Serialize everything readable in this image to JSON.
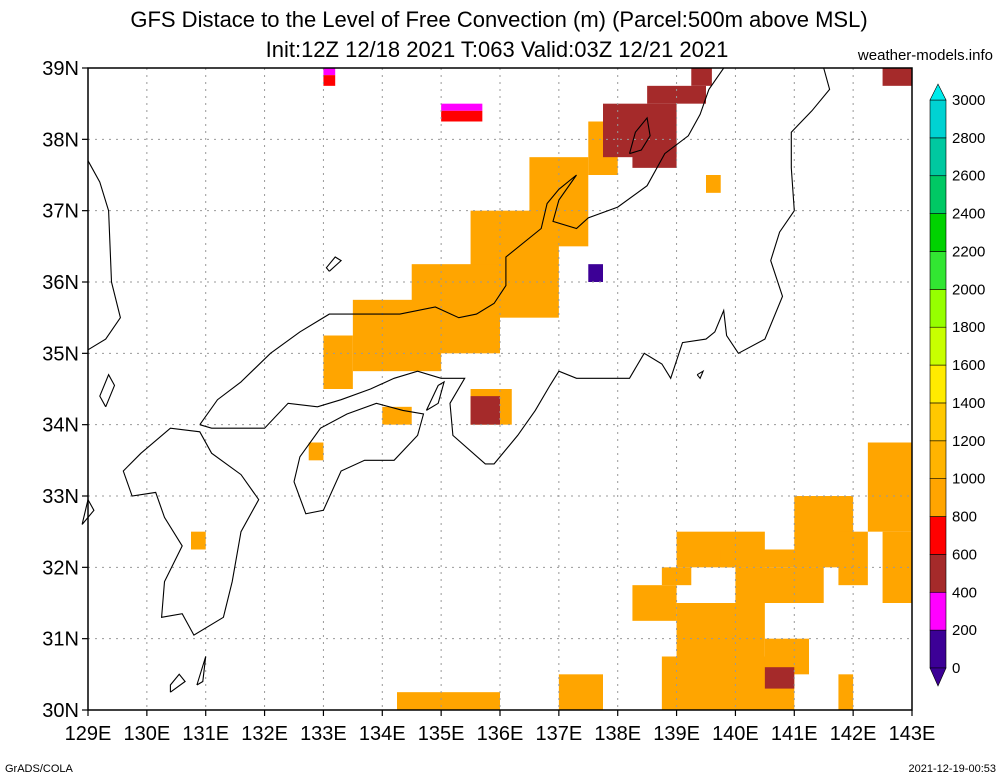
{
  "header": {
    "title_line1": "GFS Distace to the Level of Free Convection (m) (Parcel:500m above MSL)",
    "title_line2": "Init:12Z 12/18 2021 T:063 Valid:03Z 12/21 2021",
    "site": "weather-models.info"
  },
  "footer": {
    "left": "GrADS/COLA",
    "right": "2021-12-19-00:53"
  },
  "colors": {
    "coast": "#000000",
    "grid": "#999999"
  },
  "chart_data": {
    "type": "heatmap",
    "title": "GFS Distace to the Level of Free Convection (m) (Parcel:500m above MSL)",
    "subtitle": "Init:12Z 12/18 2021 T:063 Valid:03Z 12/21 2021",
    "units": "m",
    "x_range": [
      129,
      143
    ],
    "y_range": [
      30,
      39
    ],
    "x_ticks": [
      "129E",
      "130E",
      "131E",
      "132E",
      "133E",
      "134E",
      "135E",
      "136E",
      "137E",
      "138E",
      "139E",
      "140E",
      "141E",
      "142E",
      "143E"
    ],
    "y_ticks": [
      "30N",
      "31N",
      "32N",
      "33N",
      "34N",
      "35N",
      "36N",
      "37N",
      "38N",
      "39N"
    ],
    "grid": true,
    "colorbar": {
      "levels": [
        "0",
        "200",
        "400",
        "600",
        "800",
        "1000",
        "1200",
        "1400",
        "1600",
        "1800",
        "2000",
        "2200",
        "2400",
        "2600",
        "2800",
        "3000"
      ],
      "colors": [
        "#3c0096",
        "#ff00ff",
        "#a52a2a",
        "#ff0000",
        "#ffa500",
        "#ffb400",
        "#ffc800",
        "#ffeb00",
        "#c8ff00",
        "#96ff00",
        "#32e632",
        "#00d200",
        "#00c864",
        "#00c8a0",
        "#00d2d2",
        "#00ebeb"
      ],
      "placement": "right"
    },
    "cells": [
      {
        "lon": 133.0,
        "lat": 38.9,
        "lon2": 133.2,
        "lat2": 39.0,
        "value": 200
      },
      {
        "lon": 133.0,
        "lat": 38.75,
        "lon2": 133.2,
        "lat2": 38.9,
        "value": 700
      },
      {
        "lon": 135.0,
        "lat": 38.5,
        "lon2": 135.7,
        "lat2": 38.4,
        "value": 300
      },
      {
        "lon": 135.0,
        "lat": 38.4,
        "lon2": 135.7,
        "lat2": 38.25,
        "value": 700
      },
      {
        "lon": 137.5,
        "lat": 37.5,
        "lon2": 138.0,
        "lat2": 38.25,
        "value": 900
      },
      {
        "lon": 138.0,
        "lat": 38.0,
        "lon2": 138.5,
        "lat2": 38.25,
        "value": 900
      },
      {
        "lon": 136.5,
        "lat": 36.5,
        "lon2": 137.5,
        "lat2": 37.75,
        "value": 900
      },
      {
        "lon": 135.5,
        "lat": 35.5,
        "lon2": 137.0,
        "lat2": 37.0,
        "value": 900
      },
      {
        "lon": 134.5,
        "lat": 35.0,
        "lon2": 136.0,
        "lat2": 36.25,
        "value": 900
      },
      {
        "lon": 133.5,
        "lat": 34.75,
        "lon2": 135.0,
        "lat2": 35.75,
        "value": 900
      },
      {
        "lon": 133.0,
        "lat": 34.5,
        "lon2": 133.5,
        "lat2": 35.25,
        "value": 900
      },
      {
        "lon": 134.0,
        "lat": 34.0,
        "lon2": 134.5,
        "lat2": 34.25,
        "value": 900
      },
      {
        "lon": 135.5,
        "lat": 34.0,
        "lon2": 136.2,
        "lat2": 34.5,
        "value": 900
      },
      {
        "lon": 132.75,
        "lat": 33.5,
        "lon2": 133.0,
        "lat2": 33.75,
        "value": 800
      },
      {
        "lon": 130.75,
        "lat": 32.25,
        "lon2": 131.0,
        "lat2": 32.5,
        "value": 900
      },
      {
        "lon": 137.75,
        "lat": 37.75,
        "lon2": 139.0,
        "lat2": 38.5,
        "value": 500
      },
      {
        "lon": 138.5,
        "lat": 38.5,
        "lon2": 139.5,
        "lat2": 38.75,
        "value": 400
      },
      {
        "lon": 139.25,
        "lat": 38.75,
        "lon2": 139.6,
        "lat2": 39.0,
        "value": 400
      },
      {
        "lon": 137.5,
        "lat": 36.0,
        "lon2": 137.75,
        "lat2": 36.25,
        "value": 50
      },
      {
        "lon": 142.5,
        "lat": 38.75,
        "lon2": 143.0,
        "lat2": 39.0,
        "value": 500
      },
      {
        "lon": 134.25,
        "lat": 30.0,
        "lon2": 136.0,
        "lat2": 30.25,
        "value": 900
      },
      {
        "lon": 137.0,
        "lat": 30.0,
        "lon2": 137.75,
        "lat2": 30.5,
        "value": 900
      },
      {
        "lon": 138.75,
        "lat": 30.0,
        "lon2": 141.0,
        "lat2": 30.75,
        "value": 900
      },
      {
        "lon": 139.0,
        "lat": 30.75,
        "lon2": 140.5,
        "lat2": 31.5,
        "value": 900
      },
      {
        "lon": 140.5,
        "lat": 30.5,
        "lon2": 141.25,
        "lat2": 31.0,
        "value": 900
      },
      {
        "lon": 138.25,
        "lat": 31.25,
        "lon2": 139.0,
        "lat2": 31.75,
        "value": 900
      },
      {
        "lon": 138.75,
        "lat": 31.75,
        "lon2": 139.25,
        "lat2": 32.0,
        "value": 900
      },
      {
        "lon": 139.0,
        "lat": 32.0,
        "lon2": 140.5,
        "lat2": 32.5,
        "value": 900
      },
      {
        "lon": 139.75,
        "lat": 32.0,
        "lon2": 141.5,
        "lat2": 32.25,
        "value": 900
      },
      {
        "lon": 140.0,
        "lat": 31.5,
        "lon2": 141.5,
        "lat2": 32.0,
        "value": 900
      },
      {
        "lon": 141.0,
        "lat": 32.0,
        "lon2": 142.0,
        "lat2": 33.0,
        "value": 900
      },
      {
        "lon": 141.75,
        "lat": 31.75,
        "lon2": 142.25,
        "lat2": 32.5,
        "value": 900
      },
      {
        "lon": 142.25,
        "lat": 32.5,
        "lon2": 143.0,
        "lat2": 33.75,
        "value": 900
      },
      {
        "lon": 142.5,
        "lat": 31.5,
        "lon2": 143.0,
        "lat2": 32.5,
        "value": 900
      },
      {
        "lon": 141.75,
        "lat": 30.0,
        "lon2": 142.0,
        "lat2": 30.5,
        "value": 900
      },
      {
        "lon": 140.5,
        "lat": 30.3,
        "lon2": 141.0,
        "lat2": 30.6,
        "value": 500
      },
      {
        "lon": 135.5,
        "lat": 34.0,
        "lon2": 136.0,
        "lat2": 34.4,
        "value": 500
      },
      {
        "lon": 139.5,
        "lat": 37.25,
        "lon2": 139.75,
        "lat2": 37.5,
        "value": 900
      },
      {
        "lon": 138.25,
        "lat": 37.6,
        "lon2": 139.0,
        "lat2": 38.0,
        "value": 500
      }
    ]
  }
}
